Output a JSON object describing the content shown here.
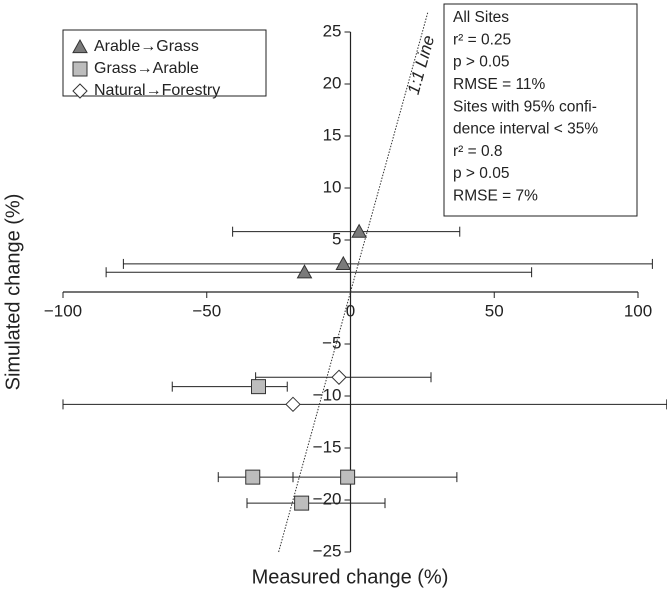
{
  "chart_data": {
    "type": "scatter",
    "x_label": "Measured change (%)",
    "y_label": "Simulated change (%)",
    "xlim": [
      -100,
      100
    ],
    "ylim": [
      -25,
      25
    ],
    "xticks": [
      {
        "value": -100,
        "label": "−100"
      },
      {
        "value": -50,
        "label": "−50"
      },
      0,
      50,
      100
    ],
    "yticks": [
      25,
      20,
      15,
      10,
      5,
      {
        "value": -5,
        "label": "−5"
      },
      {
        "value": -10,
        "label": "−10"
      },
      {
        "value": -15,
        "label": "−15"
      },
      {
        "value": -20,
        "label": "−20"
      },
      {
        "value": -25,
        "label": "−25"
      }
    ],
    "reference_line": {
      "label": "1:1 Line"
    },
    "annotation": [
      "All Sites",
      "r² = 0.25",
      "p > 0.05",
      "RMSE = 11%",
      "Sites with 95% confi-",
      "dence interval < 35%",
      "r² = 0.8",
      "p > 0.05",
      "RMSE = 7%"
    ],
    "legend": "upper left",
    "series": [
      {
        "name": "Arable→Grass",
        "marker": "triangle",
        "color": "#7a7a7a",
        "x": [
          3,
          -2.5,
          -16
        ],
        "values": [
          5.8,
          2.7,
          1.9
        ],
        "x_low": [
          -41,
          -79,
          -85
        ],
        "x_high": [
          38,
          105,
          63
        ]
      },
      {
        "name": "Grass→Arable",
        "marker": "square",
        "color": "#bdbdbd",
        "x": [
          -32,
          -34,
          -1,
          -17
        ],
        "values": [
          -9.1,
          -17.8,
          -17.8,
          -20.3
        ],
        "x_low": [
          -62,
          -46,
          -20,
          -36
        ],
        "x_high": [
          -22,
          -20,
          37,
          12
        ]
      },
      {
        "name": "Natural→Forestry",
        "marker": "diamond",
        "color": "#ffffff",
        "x": [
          -4,
          -20
        ],
        "values": [
          -8.2,
          -10.8
        ],
        "x_low": [
          -33,
          -100
        ],
        "x_high": [
          28,
          110
        ]
      }
    ]
  }
}
